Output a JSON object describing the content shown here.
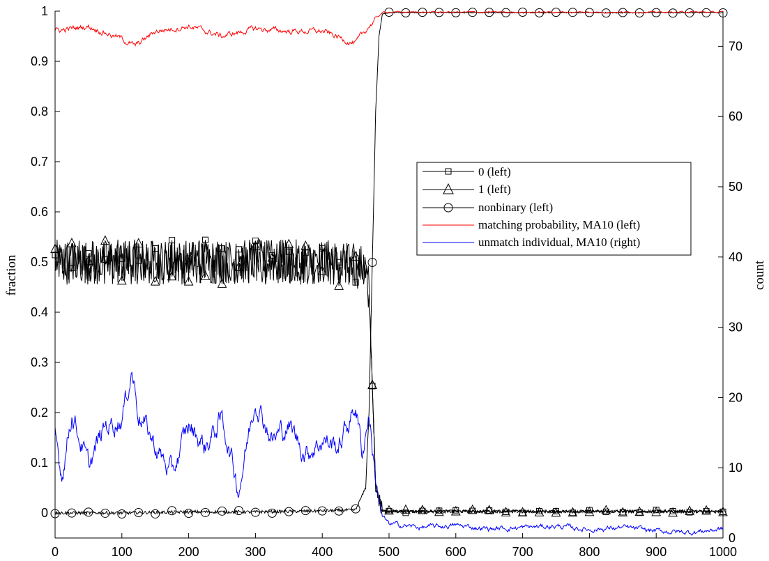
{
  "chart_data": {
    "type": "line",
    "xlabel": "",
    "ylabel": "fraction",
    "ylabel_right": "count",
    "xlim": [
      0,
      1000
    ],
    "ylim": [
      -0.05,
      1
    ],
    "ylim_right": [
      0,
      75
    ],
    "x_ticks": [
      "0",
      "100",
      "200",
      "300",
      "400",
      "500",
      "600",
      "700",
      "800",
      "900",
      "1000"
    ],
    "y_ticks": [
      "0",
      "0.1",
      "0.2",
      "0.3",
      "0.4",
      "0.5",
      "0.6",
      "0.7",
      "0.8",
      "0.9",
      "1"
    ],
    "y_ticks_right": [
      "0",
      "10",
      "20",
      "30",
      "40",
      "50",
      "60",
      "70"
    ],
    "grid": false,
    "legend_position": "right-center",
    "series": [
      {
        "name": "0 (left)",
        "axis": "left",
        "color": "#000000",
        "marker": "square",
        "x": [
          0,
          100,
          200,
          300,
          400,
          460,
          470,
          475,
          480,
          490,
          500,
          600,
          700,
          800,
          900,
          1000
        ],
        "values": [
          0.5,
          0.5,
          0.5,
          0.5,
          0.5,
          0.49,
          0.45,
          0.26,
          0.05,
          0.005,
          0.003,
          0.003,
          0.003,
          0.003,
          0.003,
          0.003
        ]
      },
      {
        "name": "1 (left)",
        "axis": "left",
        "color": "#000000",
        "marker": "triangle",
        "x": [
          0,
          100,
          200,
          300,
          400,
          460,
          470,
          475,
          480,
          490,
          500,
          600,
          700,
          800,
          900,
          1000
        ],
        "values": [
          0.5,
          0.5,
          0.5,
          0.5,
          0.5,
          0.49,
          0.45,
          0.26,
          0.05,
          0.005,
          0.003,
          0.003,
          0.003,
          0.003,
          0.003,
          0.003
        ]
      },
      {
        "name": "nonbinary (left)",
        "axis": "left",
        "color": "#000000",
        "marker": "circle",
        "x": [
          0,
          100,
          200,
          300,
          400,
          450,
          465,
          470,
          475,
          480,
          485,
          490,
          500,
          600,
          700,
          800,
          900,
          1000
        ],
        "values": [
          0.0,
          0.0,
          0.002,
          0.002,
          0.004,
          0.006,
          0.05,
          0.2,
          0.5,
          0.8,
          0.95,
          0.995,
          0.997,
          0.997,
          0.997,
          0.997,
          0.997,
          0.997
        ]
      },
      {
        "name": "matching probability, MA10 (left)",
        "axis": "left",
        "color": "#ff0000",
        "marker": "none",
        "x": [
          0,
          50,
          100,
          120,
          150,
          200,
          250,
          300,
          350,
          400,
          450,
          470,
          490,
          500,
          600,
          700,
          800,
          900,
          1000
        ],
        "values": [
          0.96,
          0.97,
          0.945,
          0.93,
          0.96,
          0.97,
          0.95,
          0.965,
          0.96,
          0.96,
          0.935,
          0.97,
          0.997,
          0.998,
          0.998,
          0.998,
          0.998,
          0.998,
          0.998
        ]
      },
      {
        "name": "unmatch individual, MA10 (right)",
        "axis": "right",
        "color": "#0000ff",
        "marker": "none",
        "x": [
          0,
          10,
          25,
          50,
          75,
          100,
          115,
          125,
          150,
          175,
          200,
          225,
          250,
          275,
          300,
          325,
          350,
          375,
          400,
          425,
          450,
          460,
          470,
          480,
          490,
          500,
          550,
          600,
          650,
          700,
          750,
          800,
          850,
          900,
          950,
          1000
        ],
        "values": [
          15,
          9,
          18,
          10,
          16,
          17,
          24,
          18,
          13,
          9,
          16,
          13,
          17,
          7,
          20,
          14,
          16,
          12,
          14,
          13,
          19,
          12,
          18,
          8,
          3,
          2,
          1.5,
          1.8,
          1.3,
          1.5,
          1.7,
          1.2,
          1.5,
          1.0,
          0.8,
          1.3
        ]
      }
    ]
  }
}
